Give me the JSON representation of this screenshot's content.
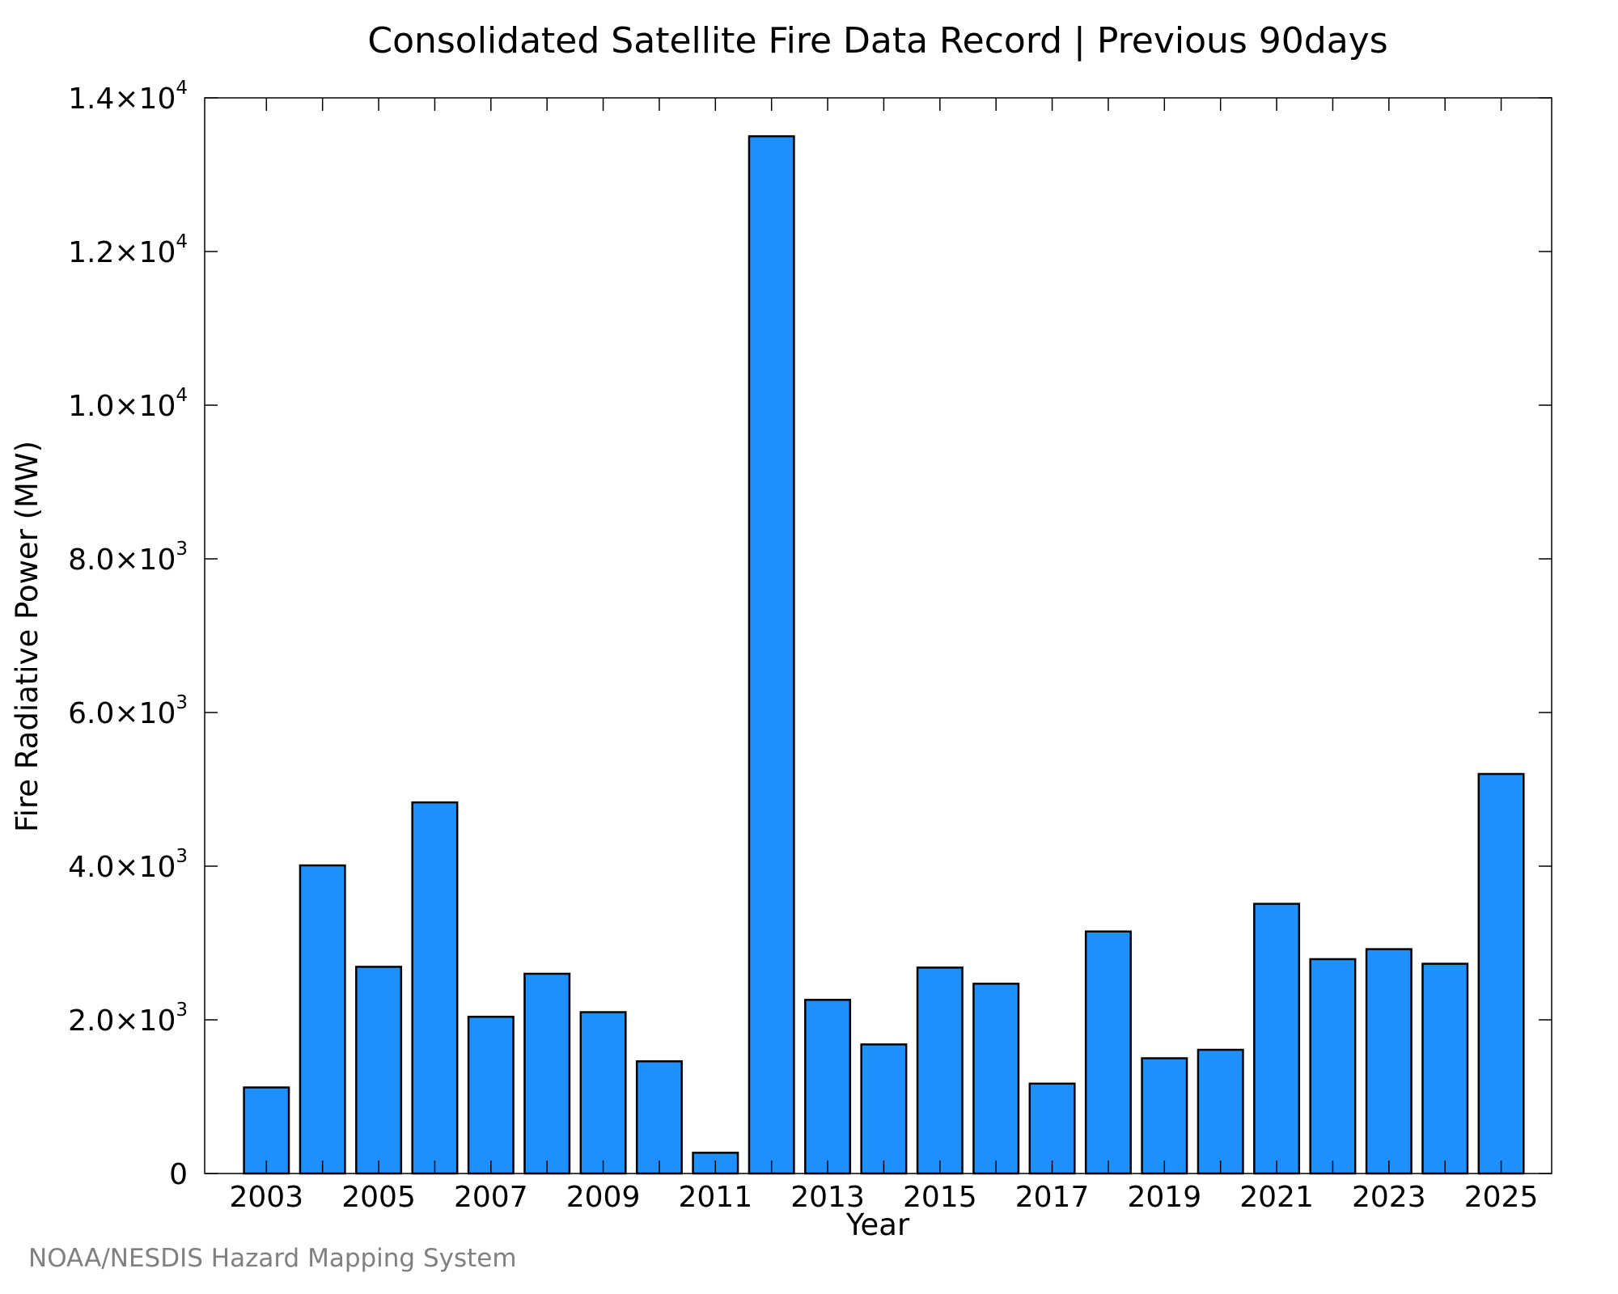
{
  "chart_data": {
    "type": "bar",
    "title": "Consolidated Satellite Fire Data Record | Previous 90days",
    "xlabel": "Year",
    "ylabel": "Fire Radiative Power (MW)",
    "categories": [
      2003,
      2004,
      2005,
      2006,
      2007,
      2008,
      2009,
      2010,
      2011,
      2012,
      2013,
      2014,
      2015,
      2016,
      2017,
      2018,
      2019,
      2020,
      2021,
      2022,
      2023,
      2024,
      2025
    ],
    "values": [
      1120,
      4010,
      2690,
      4830,
      2040,
      2600,
      2100,
      1460,
      270,
      13500,
      2260,
      1680,
      2680,
      2470,
      1170,
      3150,
      1500,
      1610,
      3510,
      2790,
      2920,
      2730,
      5200
    ],
    "xlim": [
      2001.9,
      2025.9
    ],
    "ylim": [
      0,
      14000
    ],
    "x_tick_labels": [
      "2003",
      "2005",
      "2007",
      "2009",
      "2011",
      "2013",
      "2015",
      "2017",
      "2019",
      "2021",
      "2023",
      "2025"
    ],
    "y_ticks": [
      {
        "value": 0,
        "mantissa": "0",
        "exponent": ""
      },
      {
        "value": 2000,
        "mantissa": "2.0×10",
        "exponent": "3"
      },
      {
        "value": 4000,
        "mantissa": "4.0×10",
        "exponent": "3"
      },
      {
        "value": 6000,
        "mantissa": "6.0×10",
        "exponent": "3"
      },
      {
        "value": 8000,
        "mantissa": "8.0×10",
        "exponent": "3"
      },
      {
        "value": 10000,
        "mantissa": "1.0×10",
        "exponent": "4"
      },
      {
        "value": 12000,
        "mantissa": "1.2×10",
        "exponent": "4"
      },
      {
        "value": 14000,
        "mantissa": "1.4×10",
        "exponent": "4"
      }
    ],
    "bar_color": "#1E90FF",
    "bar_edge_color": "#000000",
    "grid": false
  },
  "credit": "NOAA/NESDIS Hazard Mapping System"
}
